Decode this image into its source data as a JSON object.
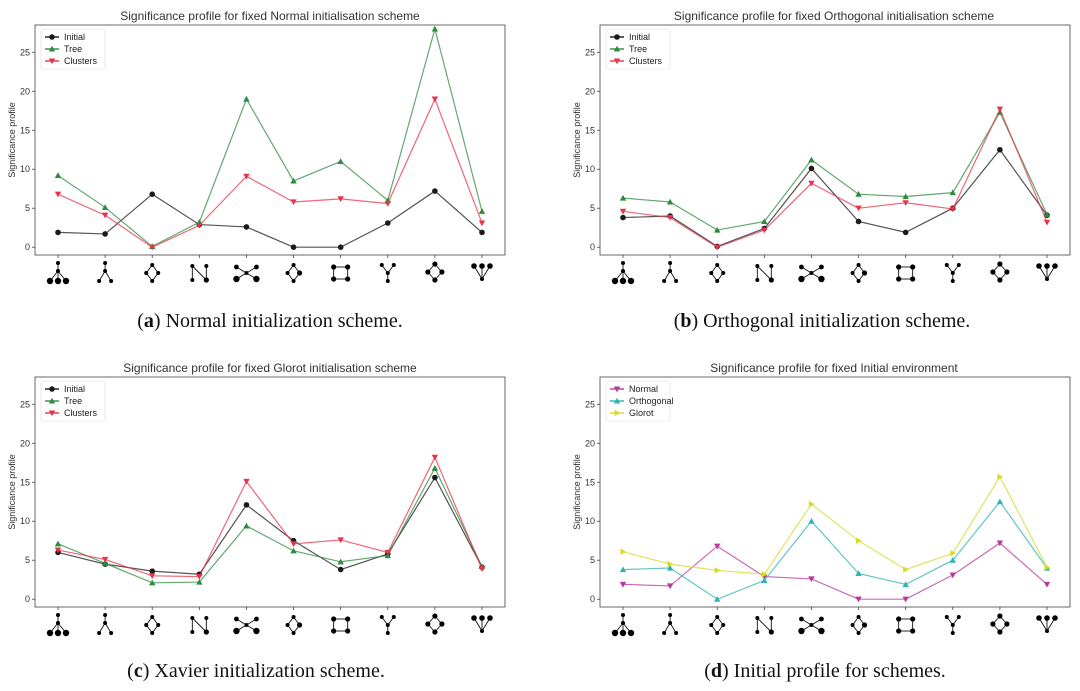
{
  "chart_data": [
    {
      "type": "line",
      "title": "Significance profile for fixed Normal initialisation scheme",
      "caption_label": "a",
      "caption_text": " Normal initialization scheme.",
      "ylabel": "Significance profile",
      "ylim": [
        -1,
        28.5
      ],
      "yticks": [
        0,
        5,
        10,
        15,
        20,
        25
      ],
      "categories": [
        "motif-1",
        "motif-2",
        "motif-3",
        "motif-4",
        "motif-5",
        "motif-6",
        "motif-7",
        "motif-8",
        "motif-9",
        "motif-10"
      ],
      "series": [
        {
          "name": "Initial",
          "color": "#1a1a1a",
          "marker": "circle",
          "values": [
            1.9,
            1.7,
            6.8,
            2.9,
            2.6,
            0.0,
            0.0,
            3.1,
            7.2,
            1.9
          ]
        },
        {
          "name": "Tree",
          "color": "#2e8b3e",
          "marker": "triangle-up",
          "values": [
            9.2,
            5.1,
            0.1,
            3.2,
            19.0,
            8.5,
            11.0,
            6.0,
            28.0,
            4.6
          ]
        },
        {
          "name": "Clusters",
          "color": "#e8334a",
          "marker": "triangle-down",
          "values": [
            6.8,
            4.1,
            0.0,
            2.8,
            9.1,
            5.8,
            6.2,
            5.6,
            19.0,
            3.1
          ]
        }
      ]
    },
    {
      "type": "line",
      "title": "Significance profile for fixed Orthogonal initialisation scheme",
      "caption_label": "b",
      "caption_text": " Orthogonal initialization scheme.",
      "ylabel": "Significance profile",
      "ylim": [
        -1,
        28.5
      ],
      "yticks": [
        0,
        5,
        10,
        15,
        20,
        25
      ],
      "categories": [
        "motif-1",
        "motif-2",
        "motif-3",
        "motif-4",
        "motif-5",
        "motif-6",
        "motif-7",
        "motif-8",
        "motif-9",
        "motif-10"
      ],
      "series": [
        {
          "name": "Initial",
          "color": "#1a1a1a",
          "marker": "circle",
          "values": [
            3.8,
            4.0,
            0.1,
            2.4,
            10.1,
            3.3,
            1.9,
            5.0,
            12.5,
            4.1
          ]
        },
        {
          "name": "Tree",
          "color": "#2e8b3e",
          "marker": "triangle-up",
          "values": [
            6.3,
            5.8,
            2.2,
            3.3,
            11.2,
            6.8,
            6.5,
            7.0,
            17.3,
            4.2
          ]
        },
        {
          "name": "Clusters",
          "color": "#e8334a",
          "marker": "triangle-down",
          "values": [
            4.6,
            3.8,
            0.0,
            2.2,
            8.2,
            5.0,
            5.7,
            4.9,
            17.7,
            3.2
          ]
        }
      ]
    },
    {
      "type": "line",
      "title": "Significance profile for fixed Glorot initialisation scheme",
      "caption_label": "c",
      "caption_text": " Xavier initialization scheme.",
      "ylabel": "Significance profile",
      "ylim": [
        -1,
        28.5
      ],
      "yticks": [
        0,
        5,
        10,
        15,
        20,
        25
      ],
      "categories": [
        "motif-1",
        "motif-2",
        "motif-3",
        "motif-4",
        "motif-5",
        "motif-6",
        "motif-7",
        "motif-8",
        "motif-9",
        "motif-10"
      ],
      "series": [
        {
          "name": "Initial",
          "color": "#1a1a1a",
          "marker": "circle",
          "values": [
            6.0,
            4.5,
            3.6,
            3.2,
            12.1,
            7.5,
            3.8,
            5.8,
            15.6,
            4.1
          ]
        },
        {
          "name": "Tree",
          "color": "#2e8b3e",
          "marker": "triangle-up",
          "values": [
            7.1,
            4.6,
            2.1,
            2.2,
            9.4,
            6.2,
            4.8,
            5.6,
            16.8,
            4.2
          ]
        },
        {
          "name": "Clusters",
          "color": "#e8334a",
          "marker": "triangle-down",
          "values": [
            6.3,
            5.1,
            3.0,
            2.9,
            15.1,
            7.1,
            7.6,
            6.0,
            18.2,
            3.9
          ]
        }
      ]
    },
    {
      "type": "line",
      "title": "Significance profile for fixed Initial environment",
      "caption_label": "d",
      "caption_text": " Initial profile for schemes.",
      "ylabel": "Significance profile",
      "ylim": [
        -1,
        28.5
      ],
      "yticks": [
        0,
        5,
        10,
        15,
        20,
        25
      ],
      "categories": [
        "motif-1",
        "motif-2",
        "motif-3",
        "motif-4",
        "motif-5",
        "motif-6",
        "motif-7",
        "motif-8",
        "motif-9",
        "motif-10"
      ],
      "series": [
        {
          "name": "Normal",
          "color": "#b8389c",
          "marker": "triangle-down",
          "values": [
            1.9,
            1.7,
            6.8,
            2.9,
            2.6,
            0.0,
            0.0,
            3.1,
            7.2,
            1.9
          ]
        },
        {
          "name": "Orthogonal",
          "color": "#2fb3b3",
          "marker": "triangle-up",
          "values": [
            3.8,
            4.0,
            0.0,
            2.4,
            10.0,
            3.3,
            1.9,
            5.0,
            12.5,
            4.0
          ]
        },
        {
          "name": "Glorot",
          "color": "#d4dc2a",
          "marker": "triangle-right",
          "values": [
            6.1,
            4.5,
            3.7,
            3.2,
            12.2,
            7.5,
            3.8,
            5.9,
            15.7,
            4.1
          ]
        }
      ]
    }
  ]
}
